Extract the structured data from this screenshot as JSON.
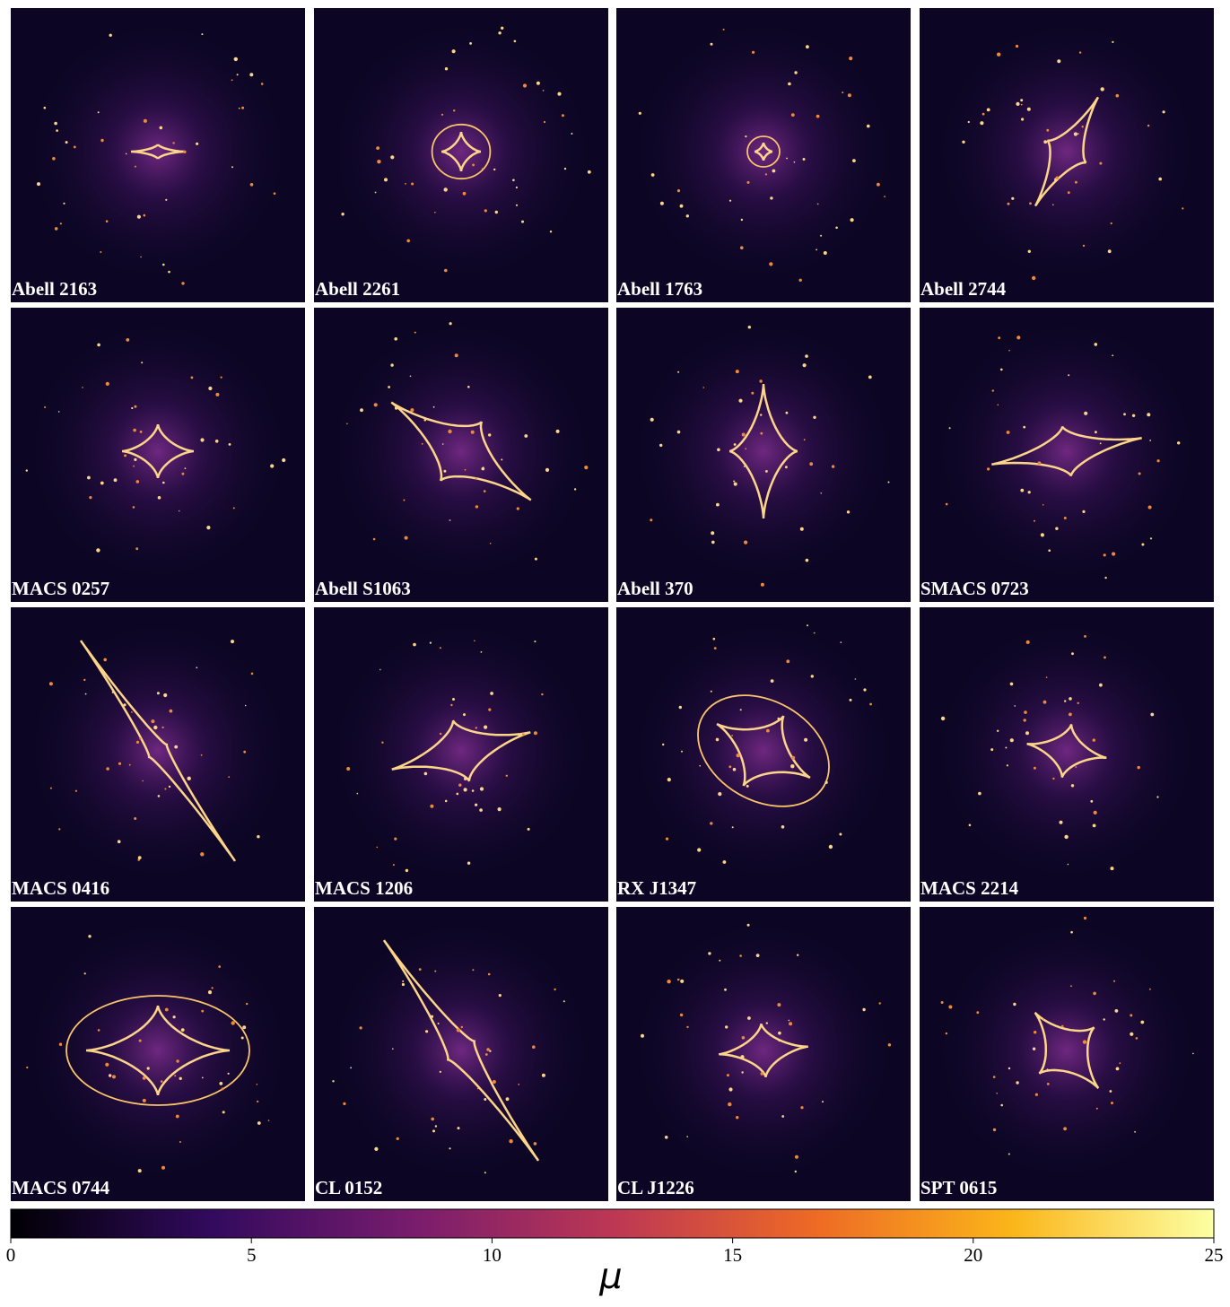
{
  "chart_data": {
    "type": "image-grid",
    "panels": [
      "Abell 2163",
      "Abell 2261",
      "Abell 1763",
      "Abell 2744",
      "MACS 0257",
      "Abell S1063",
      "Abell 370",
      "SMACS 0723",
      "MACS 0416",
      "MACS 1206",
      "RX J1347",
      "MACS 2214",
      "MACS 0744",
      "CL 0152",
      "CL J1226",
      "SPT 0615"
    ],
    "colorbar": {
      "label": "μ",
      "lim": [
        0,
        25
      ],
      "ticks": [
        0,
        5,
        10,
        15,
        20,
        25
      ],
      "colors": [
        "#000004",
        "#320a5e",
        "#781c6d",
        "#bc3754",
        "#ed6925",
        "#fbb61a",
        "#fcffa4"
      ]
    }
  }
}
